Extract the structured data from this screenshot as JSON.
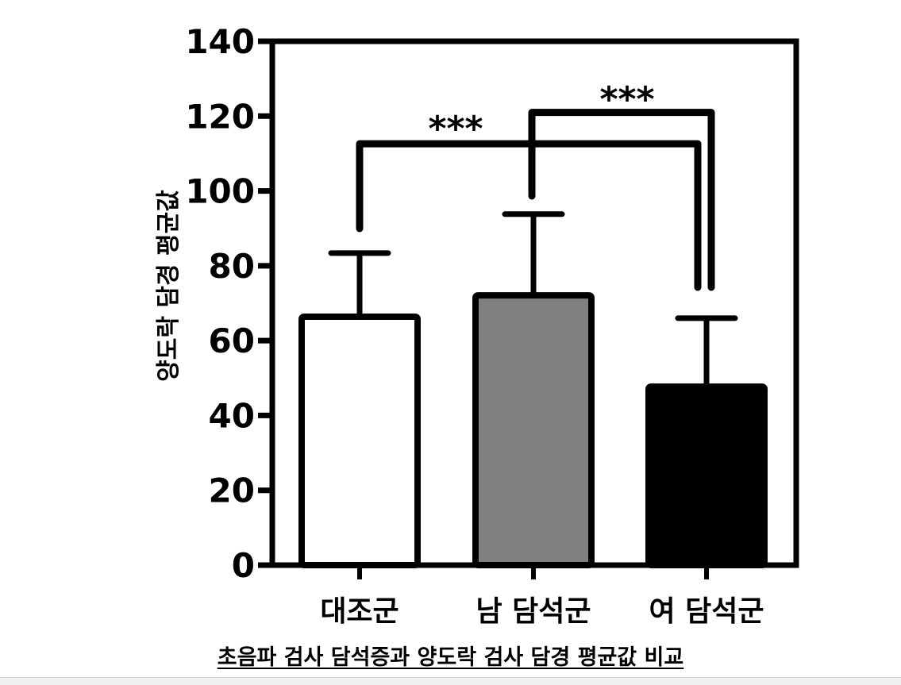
{
  "chart_data": {
    "type": "bar",
    "title": "초음파 검사 담석증과 양도락 검사 담경 평균값 비교",
    "xlabel": "",
    "ylabel": "양도락 담경 평균값",
    "categories": [
      "대조군",
      "남 담석군",
      "여 담석군"
    ],
    "values": [
      66.4,
      72.1,
      47.7
    ],
    "error_upper": [
      83.4,
      93.8,
      66.0
    ],
    "bar_colors": [
      "#ffffff",
      "#808080",
      "#000000"
    ],
    "ylim": [
      0,
      140
    ],
    "yticks": [
      0,
      20,
      40,
      60,
      80,
      100,
      120,
      140
    ],
    "grid": false,
    "legend": null,
    "annotations": [
      {
        "label": "***",
        "from": "대조군",
        "to": "여 담석군",
        "y": 112.6
      },
      {
        "label": "***",
        "from": "남 담석군",
        "to": "여 담석군",
        "y": 121.0
      }
    ]
  },
  "caption": "초음파 검사 담석증과 양도락 검사 담경 평균값 비교"
}
